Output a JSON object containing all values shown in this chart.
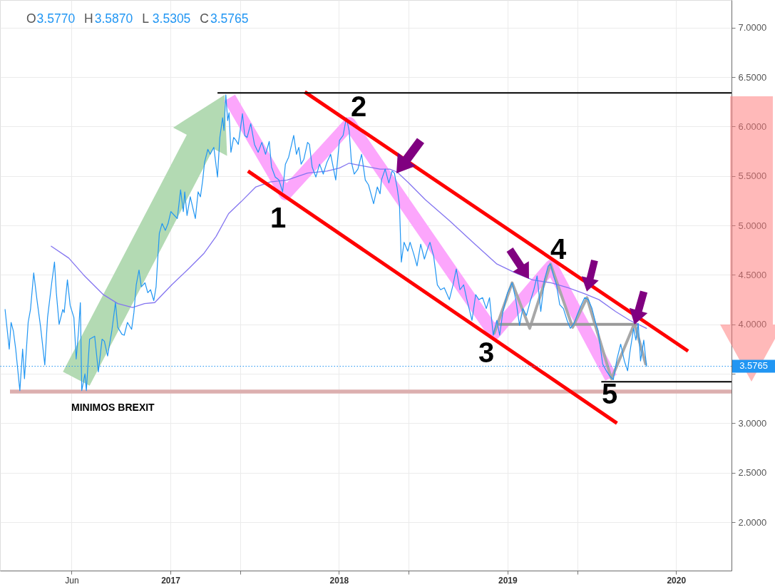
{
  "chart_data": {
    "type": "line",
    "xlim": [
      "2015-12-29",
      "2020-04-30"
    ],
    "ylim": [
      1.51,
      7.28
    ],
    "xticks": [
      {
        "value": "2016-06-01",
        "label": "Jun"
      },
      {
        "value": "2017-01-01",
        "label": "2017"
      },
      {
        "value": "2017-06-01",
        "label": null
      },
      {
        "value": "2018-01-01",
        "label": "2018"
      },
      {
        "value": "2018-06-01",
        "label": null
      },
      {
        "value": "2019-01-01",
        "label": "2019"
      },
      {
        "value": "2019-06-01",
        "label": null
      },
      {
        "value": "2020-01-01",
        "label": "2020"
      }
    ],
    "yticks": [
      {
        "value": 2,
        "label": "2.0000"
      },
      {
        "value": 2.5,
        "label": "2.5000"
      },
      {
        "value": 3,
        "label": "3.0000"
      },
      {
        "value": 3.5,
        "label": null
      },
      {
        "value": 4,
        "label": "4.0000"
      },
      {
        "value": 4.5,
        "label": "4.5000"
      },
      {
        "value": 5,
        "label": "5.0000"
      },
      {
        "value": 5.5,
        "label": "5.5000"
      },
      {
        "value": 6,
        "label": "6.0000"
      },
      {
        "value": 6.5,
        "label": "6.5000"
      },
      {
        "value": 7,
        "label": "7.0000"
      }
    ],
    "grid": true,
    "series": [
      {
        "color": "#fca6fc",
        "x": [
          "2017-05-09",
          "2017-09-07",
          "2018-01-24",
          "2018-12-03",
          "2019-04-06",
          "2019-08-13"
        ],
        "values": [
          6.29,
          5.32,
          6.03,
          3.91,
          4.59,
          3.46
        ]
      },
      {
        "color": "#a8a8a8",
        "x": [
          "2018-12-03",
          "2019-01-11",
          "2019-02-18",
          "2019-04-04",
          "2019-05-22",
          "2019-06-22",
          "2019-08-14",
          "2019-10-03",
          "2019-10-27"
        ],
        "values": [
          3.91,
          4.42,
          3.96,
          4.61,
          3.97,
          4.27,
          3.45,
          4.01,
          3.6
        ]
      },
      {
        "color": "#9a9a9a",
        "x": [
          "2018-12-14",
          "2019-10-08"
        ],
        "values": [
          4.0,
          4.0
        ]
      },
      {
        "color": "#8475f0",
        "x": [
          "2016-04-18",
          "2016-05-26",
          "2016-06-27",
          "2016-08-09",
          "2016-09-09",
          "2016-10-11",
          "2016-11-06",
          "2016-11-28",
          "2017-01-04",
          "2017-02-11",
          "2017-03-15",
          "2017-04-10",
          "2017-05-07",
          "2017-06-03",
          "2017-07-05",
          "2017-08-05",
          "2017-09-11",
          "2017-10-25",
          "2017-12-06",
          "2018-01-02",
          "2018-01-23",
          "2018-02-24",
          "2018-03-31",
          "2018-04-21",
          "2018-05-07",
          "2018-06-01",
          "2018-07-07",
          "2018-08-28",
          "2018-10-18",
          "2018-12-09",
          "2019-01-18",
          "2019-02-24",
          "2019-04-06",
          "2019-05-12",
          "2019-06-17",
          "2019-07-18",
          "2019-08-23",
          "2019-09-23",
          "2019-10-29"
        ],
        "values": [
          4.79,
          4.67,
          4.5,
          4.3,
          4.21,
          4.17,
          4.21,
          4.22,
          4.4,
          4.57,
          4.72,
          4.89,
          5.12,
          5.24,
          5.39,
          5.44,
          5.46,
          5.53,
          5.55,
          5.58,
          5.63,
          5.6,
          5.57,
          5.57,
          5.54,
          5.43,
          5.26,
          5.05,
          4.83,
          4.61,
          4.52,
          4.45,
          4.42,
          4.37,
          4.31,
          4.25,
          4.13,
          4.04,
          3.96
        ]
      },
      {
        "color": "#2196f3",
        "x": [
          "2016-01-09",
          "2016-01-18",
          "2016-01-22",
          "2016-01-27",
          "2016-02-01",
          "2016-02-10",
          "2016-02-16",
          "2016-02-20",
          "2016-02-28",
          "2016-03-04",
          "2016-03-11",
          "2016-03-18",
          "2016-03-26",
          "2016-04-04",
          "2016-04-10",
          "2016-04-19",
          "2016-04-25",
          "2016-04-29",
          "2016-05-05",
          "2016-05-13",
          "2016-05-16",
          "2016-05-23",
          "2016-05-29",
          "2016-06-06",
          "2016-06-11",
          "2016-06-16",
          "2016-06-20",
          "2016-06-23",
          "2016-06-30",
          "2016-07-03",
          "2016-07-10",
          "2016-07-21",
          "2016-07-29",
          "2016-08-06",
          "2016-08-11",
          "2016-08-18",
          "2016-08-27",
          "2016-09-04",
          "2016-09-09",
          "2016-09-18",
          "2016-09-23",
          "2016-09-30",
          "2016-10-09",
          "2016-10-14",
          "2016-10-19",
          "2016-10-25",
          "2016-10-30",
          "2016-11-07",
          "2016-11-13",
          "2016-11-19",
          "2016-11-26",
          "2016-12-01",
          "2016-12-04",
          "2016-12-08",
          "2016-12-14",
          "2016-12-21",
          "2016-12-27",
          "2017-01-02",
          "2017-01-10",
          "2017-01-16",
          "2017-01-23",
          "2017-01-29",
          "2017-02-01",
          "2017-02-06",
          "2017-02-13",
          "2017-02-19",
          "2017-02-24",
          "2017-03-02",
          "2017-03-07",
          "2017-03-12",
          "2017-03-16",
          "2017-03-23",
          "2017-03-28",
          "2017-04-05",
          "2017-04-13",
          "2017-04-18",
          "2017-04-24",
          "2017-04-27",
          "2017-05-01",
          "2017-05-05",
          "2017-05-08",
          "2017-05-12",
          "2017-05-18",
          "2017-05-23",
          "2017-05-28",
          "2017-06-06",
          "2017-06-11",
          "2017-06-16",
          "2017-06-24",
          "2017-07-02",
          "2017-07-10",
          "2017-07-18",
          "2017-07-26",
          "2017-08-03",
          "2017-08-08",
          "2017-08-16",
          "2017-08-24",
          "2017-09-01",
          "2017-09-07",
          "2017-09-14",
          "2017-09-25",
          "2017-10-01",
          "2017-10-06",
          "2017-10-11",
          "2017-10-17",
          "2017-10-25",
          "2017-10-29",
          "2017-11-04",
          "2017-11-12",
          "2017-11-20",
          "2017-11-28",
          "2017-12-06",
          "2017-12-14",
          "2017-12-25",
          "2018-01-02",
          "2018-01-10",
          "2018-01-17",
          "2018-01-23",
          "2018-01-28",
          "2018-02-03",
          "2018-02-11",
          "2018-02-19",
          "2018-02-27",
          "2018-03-06",
          "2018-03-17",
          "2018-03-25",
          "2018-03-31",
          "2018-04-03",
          "2018-04-11",
          "2018-04-19",
          "2018-04-26",
          "2018-05-01",
          "2018-05-07",
          "2018-05-12",
          "2018-05-16",
          "2018-05-22",
          "2018-05-30",
          "2018-06-04",
          "2018-06-12",
          "2018-06-19",
          "2018-06-27",
          "2018-07-05",
          "2018-07-13",
          "2018-07-17",
          "2018-07-25",
          "2018-08-02",
          "2018-08-09",
          "2018-08-17",
          "2018-08-28",
          "2018-09-05",
          "2018-09-12",
          "2018-09-20",
          "2018-09-28",
          "2018-10-05",
          "2018-10-16",
          "2018-10-24",
          "2018-10-31",
          "2018-11-08",
          "2018-11-16",
          "2018-11-23",
          "2018-12-01",
          "2018-12-09",
          "2018-12-15",
          "2018-12-22",
          "2019-01-01",
          "2019-01-11",
          "2019-01-19",
          "2019-01-27",
          "2019-02-03",
          "2019-02-11",
          "2019-02-19",
          "2019-02-27",
          "2019-03-06",
          "2019-03-14",
          "2019-03-22",
          "2019-03-30",
          "2019-04-04",
          "2019-04-12",
          "2019-04-17",
          "2019-04-24",
          "2019-05-02",
          "2019-05-10",
          "2019-05-17",
          "2019-05-25",
          "2019-06-02",
          "2019-06-10",
          "2019-06-17",
          "2019-06-25",
          "2019-07-03",
          "2019-07-11",
          "2019-07-16",
          "2019-07-21",
          "2019-07-26",
          "2019-08-03",
          "2019-08-10",
          "2019-08-18",
          "2019-08-26",
          "2019-09-03",
          "2019-09-11",
          "2019-09-18",
          "2019-09-23",
          "2019-10-01",
          "2019-10-06",
          "2019-10-11",
          "2019-10-16",
          "2019-10-23",
          "2019-10-29"
        ],
        "values": [
          4.15,
          3.75,
          4.02,
          3.93,
          3.75,
          3.33,
          3.75,
          3.45,
          4.02,
          4.15,
          4.52,
          4.25,
          3.97,
          3.59,
          4.07,
          4.42,
          4.63,
          4.32,
          4.0,
          4.15,
          4.12,
          4.45,
          4.19,
          4.07,
          3.65,
          3.93,
          4.22,
          3.33,
          3.5,
          3.33,
          3.85,
          3.88,
          3.52,
          3.85,
          3.83,
          3.68,
          3.93,
          4.22,
          3.97,
          3.9,
          3.89,
          4.02,
          3.95,
          4.12,
          4.4,
          4.55,
          4.38,
          4.42,
          4.32,
          4.35,
          4.24,
          4.38,
          4.62,
          4.92,
          5.02,
          4.95,
          5.02,
          5.14,
          5.1,
          5.07,
          5.36,
          5.14,
          5.34,
          5.1,
          5.29,
          5.17,
          5.07,
          5.34,
          5.29,
          5.46,
          5.64,
          5.77,
          5.72,
          5.79,
          5.49,
          5.89,
          6.09,
          5.96,
          6.32,
          6.06,
          6.14,
          5.74,
          5.89,
          5.86,
          5.82,
          6.13,
          5.91,
          5.89,
          6.03,
          5.82,
          5.74,
          5.84,
          5.72,
          5.85,
          5.59,
          5.49,
          5.46,
          5.34,
          5.62,
          5.69,
          5.91,
          5.72,
          5.79,
          5.62,
          5.67,
          5.84,
          5.82,
          5.59,
          5.49,
          5.62,
          5.52,
          5.64,
          5.72,
          5.46,
          5.86,
          5.91,
          6.09,
          5.96,
          5.64,
          5.52,
          5.57,
          5.72,
          5.46,
          5.41,
          5.22,
          5.39,
          5.32,
          5.46,
          5.57,
          5.43,
          5.55,
          5.53,
          5.38,
          5.21,
          4.63,
          4.83,
          4.74,
          4.83,
          4.71,
          4.59,
          4.81,
          4.66,
          4.78,
          4.83,
          4.69,
          4.4,
          4.35,
          4.37,
          4.25,
          4.4,
          4.56,
          4.35,
          4.4,
          4.25,
          4.04,
          4.3,
          4.25,
          4.27,
          4.16,
          4.27,
          3.89,
          4.04,
          3.89,
          4.13,
          4.32,
          4.42,
          4.25,
          3.99,
          4.16,
          4.09,
          4.23,
          4.35,
          4.49,
          4.13,
          4.45,
          4.59,
          4.61,
          4.47,
          4.4,
          4.2,
          4.16,
          4.04,
          3.96,
          4.01,
          4.11,
          4.2,
          4.27,
          4.25,
          4.16,
          4.01,
          3.94,
          3.77,
          3.6,
          3.53,
          3.48,
          3.44,
          3.65,
          3.8,
          3.63,
          3.53,
          3.72,
          3.96,
          3.84,
          4.01,
          3.63,
          3.84,
          3.5765
        ]
      },
      {
        "color": "#ff0000",
        "x": [
          "2017-10-19",
          "2020-01-27"
        ],
        "values": [
          6.35,
          3.73
        ]
      },
      {
        "color": "#ff0000",
        "x": [
          "2017-06-18",
          "2019-08-26"
        ],
        "values": [
          5.55,
          3.0
        ]
      },
      {
        "color": "#000000",
        "x": [
          "2017-04-13",
          "2020-04-30"
        ],
        "values": [
          6.34,
          6.34
        ]
      },
      {
        "color": "#000000",
        "x": [
          "2019-07-23",
          "2020-04-30"
        ],
        "values": [
          3.42,
          3.42
        ]
      }
    ],
    "ref_lines": [
      {
        "axis": "y",
        "value": 3.5765,
        "label": "3.5765",
        "color": "#2196f3",
        "line_style": "dotted"
      }
    ],
    "bands": [
      {
        "axis": "y",
        "from": 3.3,
        "to": 3.34,
        "label": "MINIMOS BREXIT",
        "color": "#dcafaf"
      }
    ],
    "annotations": [
      "O",
      "3.5770",
      "H",
      "3.5870",
      "L",
      "3.5305",
      "C",
      "3.5765",
      "1",
      "2",
      "3",
      "4",
      "5"
    ]
  }
}
